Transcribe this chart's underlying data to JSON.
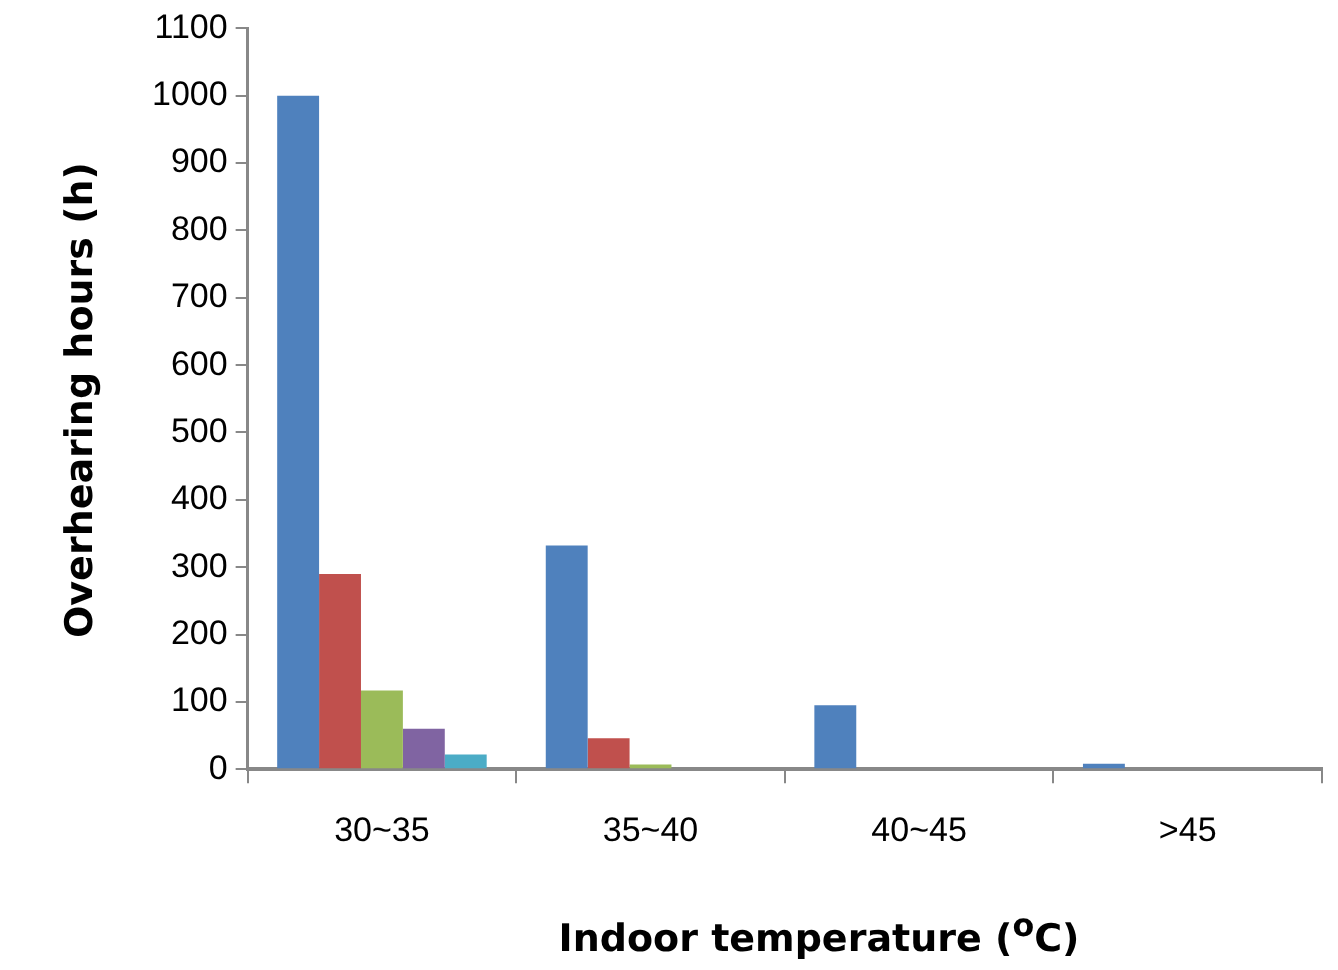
{
  "chart_data": {
    "type": "bar",
    "xlabel": "Indoor temperature ($^{o}$C)",
    "ylabel": "Overhearing hours (h)",
    "categories": [
      "30~35",
      "35~40",
      "40~45",
      ">45"
    ],
    "series": [
      {
        "color": "#4f81bd",
        "values": [
          1000,
          332,
          95,
          8
        ]
      },
      {
        "color": "#c0504d",
        "values": [
          290,
          46,
          0,
          0
        ]
      },
      {
        "color": "#9bbb59",
        "values": [
          117,
          7,
          0,
          0
        ]
      },
      {
        "color": "#8064a2",
        "values": [
          60,
          0,
          0,
          0
        ]
      },
      {
        "color": "#4bacc6",
        "values": [
          22,
          0,
          0,
          0
        ]
      }
    ],
    "ylim": [
      0,
      1100
    ],
    "yticks": [
      0,
      100,
      200,
      300,
      400,
      500,
      600,
      700,
      800,
      900,
      1000,
      1100
    ],
    "grid": false,
    "legend": false
  }
}
